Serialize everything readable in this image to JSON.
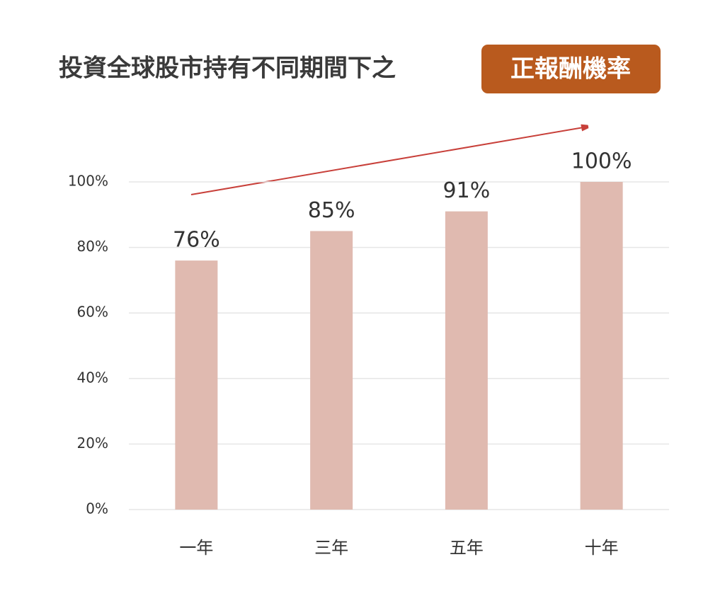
{
  "chart_data": {
    "type": "bar",
    "title": "投資全球股市持有不同期間下之",
    "title_highlight": "正報酬機率",
    "categories": [
      "一年",
      "三年",
      "五年",
      "十年"
    ],
    "values": [
      76,
      85,
      91,
      100
    ],
    "value_labels": [
      "76%",
      "85%",
      "91%",
      "100%"
    ],
    "color": "#e0bab0",
    "ylim": [
      0,
      100
    ],
    "yticks": [
      {
        "value": 0,
        "label": "0%"
      },
      {
        "value": 20,
        "label": "20%"
      },
      {
        "value": 40,
        "label": "40%"
      },
      {
        "value": 60,
        "label": "60%"
      },
      {
        "value": 80,
        "label": "80%"
      },
      {
        "value": 100,
        "label": "100%"
      }
    ],
    "grid": true
  }
}
